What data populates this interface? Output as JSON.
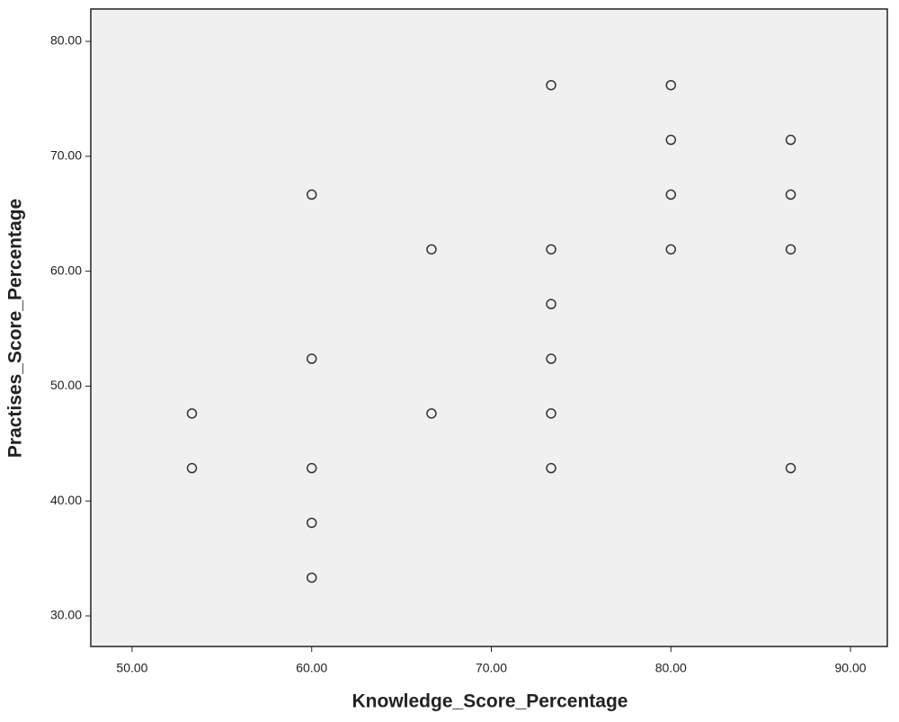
{
  "chart_data": {
    "type": "scatter",
    "x_label": "Knowledge_Score_Percentage",
    "y_label": "Practises_Score_Percentage",
    "x": [
      73.33,
      80,
      80,
      86.67,
      60,
      80,
      86.67,
      66.67,
      73.33,
      80,
      86.67,
      73.33,
      60,
      73.33,
      53.33,
      66.67,
      73.33,
      53.33,
      60,
      73.33,
      86.67,
      60,
      60
    ],
    "values": [
      76.19,
      76.19,
      71.43,
      71.43,
      66.67,
      66.67,
      66.67,
      61.9,
      61.9,
      61.9,
      61.9,
      57.14,
      52.38,
      52.38,
      47.62,
      47.62,
      47.62,
      42.86,
      42.86,
      42.86,
      42.86,
      38.1,
      33.33
    ],
    "color": "#333333",
    "xlim": [
      47.7,
      92.05
    ],
    "ylim": [
      27.34,
      82.82
    ],
    "xticks": [
      {
        "value": 50,
        "label": "50.00"
      },
      {
        "value": 60,
        "label": "60.00"
      },
      {
        "value": 70,
        "label": "70.00"
      },
      {
        "value": 80,
        "label": "80.00"
      },
      {
        "value": 90,
        "label": "90.00"
      }
    ],
    "yticks": [
      {
        "value": 30,
        "label": "30.00"
      },
      {
        "value": 40,
        "label": "40.00"
      },
      {
        "value": 50,
        "label": "50.00"
      },
      {
        "value": 60,
        "label": "60.00"
      },
      {
        "value": 70,
        "label": "70.00"
      },
      {
        "value": 80,
        "label": "80.00"
      }
    ]
  }
}
